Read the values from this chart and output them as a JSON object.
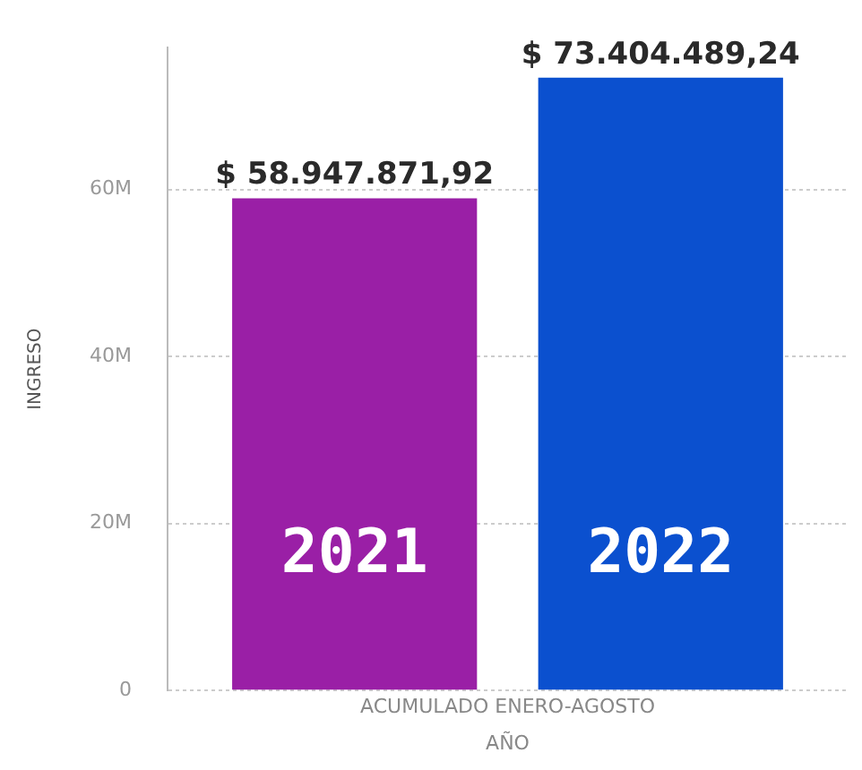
{
  "chart_data": {
    "type": "bar",
    "xlabel": "AÑO",
    "ylabel": "INGRESO",
    "categories": [
      "ACUMULADO ENERO-AGOSTO"
    ],
    "series": [
      {
        "name": "2021",
        "color": "#9a1fa6",
        "values": [
          58947871.92
        ],
        "value_labels": [
          "$ 58.947.871,92"
        ]
      },
      {
        "name": "2022",
        "color": "#0b50cf",
        "values": [
          73404489.24
        ],
        "value_labels": [
          "$ 73.404.489,24"
        ]
      }
    ],
    "ylim": [
      0,
      77000000
    ],
    "yticks": [
      {
        "value": 0,
        "label": "0"
      },
      {
        "value": 20000000,
        "label": "20M"
      },
      {
        "value": 40000000,
        "label": "40M"
      },
      {
        "value": 60000000,
        "label": "60M"
      }
    ],
    "grid": "y",
    "legend": false
  }
}
